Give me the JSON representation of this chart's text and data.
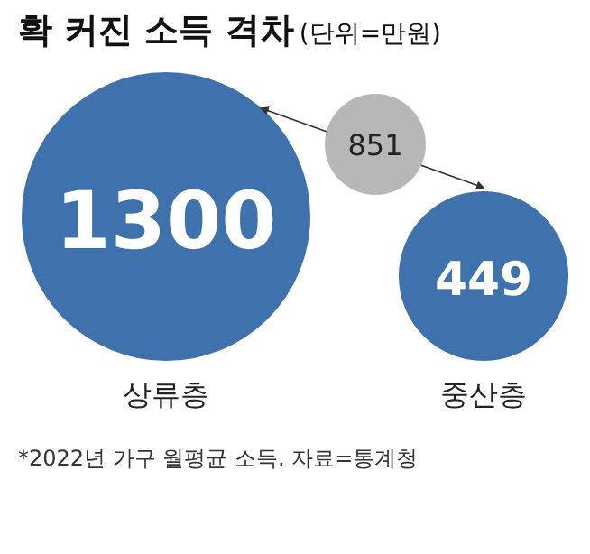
{
  "chart_data": {
    "type": "other",
    "title": "확 커진 소득 격차",
    "subtitle": "(단위=만원)",
    "categories": [
      "상류층",
      "중산층"
    ],
    "values": [
      1300,
      449
    ],
    "color": "#3f71ad",
    "data_labels": true,
    "annotations": [
      "851",
      "*2022년 가구 월평균 소득. 자료=통계청"
    ]
  }
}
